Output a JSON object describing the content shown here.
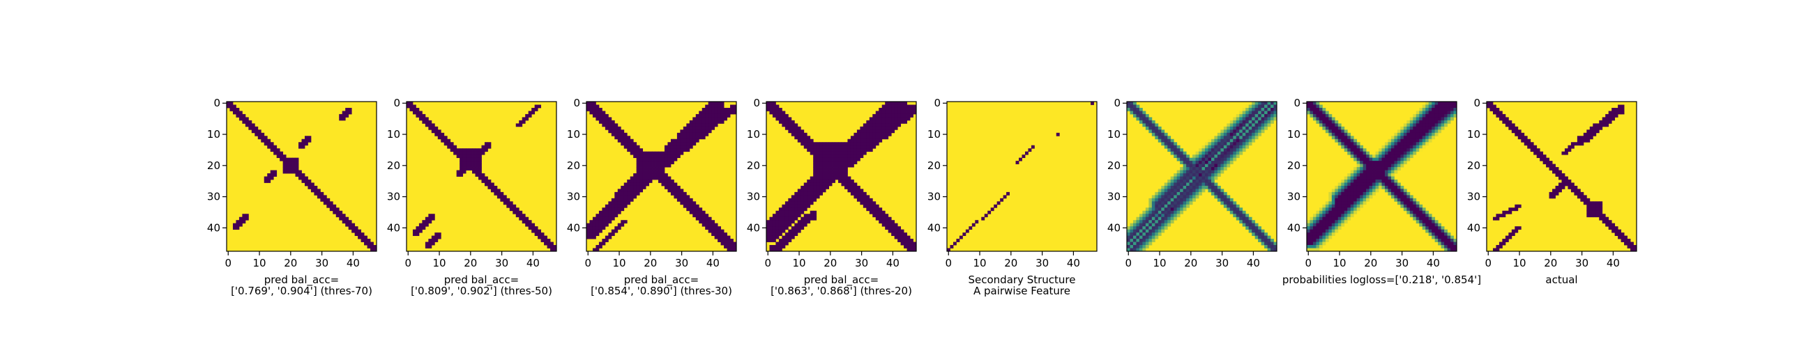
{
  "figure": {
    "colors": {
      "low": "#440154",
      "mid": "#21918c",
      "high": "#fde725",
      "frame": "#000000"
    }
  },
  "chart_data": [
    {
      "type": "heatmap",
      "variant": "binary",
      "caption": [
        "pred bal_acc=",
        "['0.769', '0.904'] (thres-70)"
      ],
      "matrix_size": 48,
      "xticks": [
        0,
        10,
        20,
        30,
        40
      ],
      "yticks": [
        0,
        10,
        20,
        30,
        40
      ],
      "features": [
        {
          "kind": "diagonal",
          "from": 0,
          "to": 47,
          "width": 2
        },
        {
          "kind": "blob",
          "row": 20,
          "col": 20,
          "radius": 2
        },
        {
          "kind": "anti",
          "r0": 5,
          "c0": 36,
          "r1": 2,
          "c1": 39,
          "width": 1
        },
        {
          "kind": "anti",
          "r0": 14,
          "c0": 23,
          "r1": 11,
          "c1": 26,
          "width": 1
        },
        {
          "kind": "anti",
          "r0": 25,
          "c0": 12,
          "r1": 22,
          "c1": 15,
          "width": 1
        },
        {
          "kind": "anti",
          "r0": 40,
          "c0": 2,
          "r1": 36,
          "c1": 6,
          "width": 1
        }
      ]
    },
    {
      "type": "heatmap",
      "variant": "binary",
      "caption": [
        "pred bal_acc=",
        "['0.809', '0.902'] (thres-50)"
      ],
      "matrix_size": 48,
      "xticks": [
        0,
        10,
        20,
        30,
        40
      ],
      "yticks": [
        0,
        10,
        20,
        30,
        40
      ],
      "features": [
        {
          "kind": "diagonal",
          "from": 0,
          "to": 47,
          "width": 3
        },
        {
          "kind": "blob",
          "row": 18,
          "col": 20,
          "radius": 3
        },
        {
          "kind": "anti",
          "r0": 7,
          "c0": 35,
          "r1": 1,
          "c1": 42,
          "width": 1
        },
        {
          "kind": "anti",
          "r0": 23,
          "c0": 16,
          "r1": 13,
          "c1": 26,
          "width": 1
        },
        {
          "kind": "anti",
          "r0": 42,
          "c0": 2,
          "r1": 36,
          "c1": 8,
          "width": 1
        },
        {
          "kind": "anti",
          "r0": 46,
          "c0": 6,
          "r1": 42,
          "c1": 10,
          "width": 1
        }
      ]
    },
    {
      "type": "heatmap",
      "variant": "binary",
      "caption": [
        "pred bal_acc=",
        "['0.854', '0.890'] (thres-30)"
      ],
      "matrix_size": 48,
      "xticks": [
        0,
        10,
        20,
        30,
        40
      ],
      "yticks": [
        0,
        10,
        20,
        30,
        40
      ],
      "features": [
        {
          "kind": "diagonal",
          "from": 0,
          "to": 47,
          "width": 4
        },
        {
          "kind": "blob",
          "row": 20,
          "col": 20,
          "radius": 4
        },
        {
          "kind": "anti",
          "r0": 42,
          "c0": 0,
          "r1": 0,
          "c1": 42,
          "width": 3
        },
        {
          "kind": "anti",
          "r0": 20,
          "c0": 24,
          "r1": 2,
          "c1": 46,
          "width": 2
        },
        {
          "kind": "anti",
          "r0": 30,
          "c0": 10,
          "r1": 20,
          "c1": 20,
          "width": 2
        },
        {
          "kind": "anti",
          "r0": 47,
          "c0": 2,
          "r1": 38,
          "c1": 12,
          "width": 1
        }
      ]
    },
    {
      "type": "heatmap",
      "variant": "binary",
      "caption": [
        "pred bal_acc=",
        "['0.863', '0.868'] (thres-20)"
      ],
      "matrix_size": 48,
      "xticks": [
        0,
        10,
        20,
        30,
        40
      ],
      "yticks": [
        0,
        10,
        20,
        30,
        40
      ],
      "features": [
        {
          "kind": "diagonal",
          "from": 0,
          "to": 47,
          "width": 5
        },
        {
          "kind": "blob",
          "row": 18,
          "col": 20,
          "radius": 5
        },
        {
          "kind": "anti",
          "r0": 42,
          "c0": 0,
          "r1": 0,
          "c1": 42,
          "width": 4
        },
        {
          "kind": "anti",
          "r0": 20,
          "c0": 24,
          "r1": 2,
          "c1": 46,
          "width": 3
        },
        {
          "kind": "anti",
          "r0": 30,
          "c0": 10,
          "r1": 20,
          "c1": 22,
          "width": 3
        },
        {
          "kind": "anti",
          "r0": 47,
          "c0": 2,
          "r1": 36,
          "c1": 14,
          "width": 2
        }
      ]
    },
    {
      "type": "heatmap",
      "variant": "binary",
      "caption": [
        "Secondary Structure",
        "A pairwise Feature"
      ],
      "matrix_size": 48,
      "xticks": [
        0,
        10,
        20,
        30,
        40
      ],
      "yticks": [
        0,
        10,
        20,
        30,
        40
      ],
      "features": [
        {
          "kind": "anti",
          "r0": 47,
          "c0": 0,
          "r1": 38,
          "c1": 9,
          "width": 0
        },
        {
          "kind": "anti",
          "r0": 37,
          "c0": 11,
          "r1": 29,
          "c1": 19,
          "width": 0
        },
        {
          "kind": "anti",
          "r0": 19,
          "c0": 22,
          "r1": 14,
          "c1": 27,
          "width": 0
        },
        {
          "kind": "anti",
          "r0": 10,
          "c0": 35,
          "r1": 0,
          "c1": 46,
          "width": 0
        }
      ]
    },
    {
      "type": "heatmap",
      "variant": "banded",
      "caption": [
        "",
        ""
      ],
      "matrix_size": 48,
      "xticks": [
        0,
        10,
        20,
        30,
        40
      ],
      "yticks": [
        0,
        10,
        20,
        30,
        40
      ],
      "features": [
        {
          "kind": "diagonal",
          "from": 0,
          "to": 47,
          "width": 1
        },
        {
          "kind": "anti",
          "r0": 46,
          "c0": 0,
          "r1": 0,
          "c1": 46,
          "width": 2
        },
        {
          "kind": "anti",
          "r0": 22,
          "c0": 22,
          "r1": 0,
          "c1": 46,
          "width": 2
        },
        {
          "kind": "anti",
          "r0": 34,
          "c0": 10,
          "r1": 20,
          "c1": 24,
          "width": 2
        }
      ]
    },
    {
      "type": "heatmap",
      "variant": "probability",
      "caption": [
        "probabilities logloss=['0.218', '0.854']",
        ""
      ],
      "matrix_size": 48,
      "xticks": [
        0,
        10,
        20,
        30,
        40
      ],
      "yticks": [
        0,
        10,
        20,
        30,
        40
      ],
      "features": [
        {
          "kind": "diagonal",
          "from": 0,
          "to": 47,
          "width": 3
        },
        {
          "kind": "anti",
          "r0": 44,
          "c0": 0,
          "r1": 0,
          "c1": 44,
          "width": 2
        },
        {
          "kind": "anti",
          "r0": 22,
          "c0": 22,
          "r1": 0,
          "c1": 46,
          "width": 2
        },
        {
          "kind": "anti",
          "r0": 32,
          "c0": 10,
          "r1": 20,
          "c1": 22,
          "width": 2
        }
      ]
    },
    {
      "type": "heatmap",
      "variant": "binary",
      "caption": [
        "actual",
        ""
      ],
      "matrix_size": 48,
      "xticks": [
        0,
        10,
        20,
        30,
        40
      ],
      "yticks": [
        0,
        10,
        20,
        30,
        40
      ],
      "features": [
        {
          "kind": "diagonal",
          "from": 0,
          "to": 47,
          "width": 2
        },
        {
          "kind": "blob",
          "row": 34,
          "col": 34,
          "radius": 2
        },
        {
          "kind": "anti",
          "r0": 12,
          "c0": 30,
          "r1": 2,
          "c1": 42,
          "width": 2
        },
        {
          "kind": "anti",
          "r0": 16,
          "c0": 24,
          "r1": 13,
          "c1": 28,
          "width": 1
        },
        {
          "kind": "anti",
          "r0": 37,
          "c0": 2,
          "r1": 33,
          "c1": 10,
          "width": 1
        },
        {
          "kind": "anti",
          "r0": 47,
          "c0": 2,
          "r1": 40,
          "c1": 10,
          "width": 1
        },
        {
          "kind": "anti",
          "r0": 30,
          "c0": 20,
          "r1": 26,
          "c1": 24,
          "width": 1
        }
      ]
    }
  ]
}
